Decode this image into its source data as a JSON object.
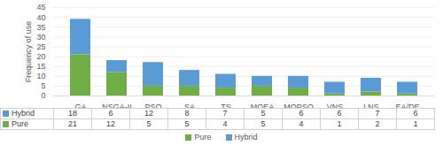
{
  "chart_data": {
    "type": "bar",
    "stacked": true,
    "y_label": "Frequency of use",
    "categories": [
      "GA",
      "NSGA-II",
      "PSO",
      "SA",
      "TS",
      "MOEA",
      "MOPSO",
      "VNS",
      "LNS",
      "EA/DE"
    ],
    "series": [
      {
        "name": "Pure",
        "color": "#70ad47",
        "values": [
          21,
          12,
          5,
          5,
          4,
          5,
          4,
          1,
          2,
          1
        ]
      },
      {
        "name": "Hybrid",
        "color": "#5b9bd5",
        "values": [
          18,
          6,
          12,
          8,
          7,
          5,
          6,
          6,
          7,
          6
        ]
      }
    ],
    "ylim": [
      0,
      45
    ],
    "yticks": [
      0,
      5,
      10,
      15,
      20,
      25,
      30,
      35,
      40,
      45
    ],
    "grid": true,
    "legend": "bottom"
  }
}
